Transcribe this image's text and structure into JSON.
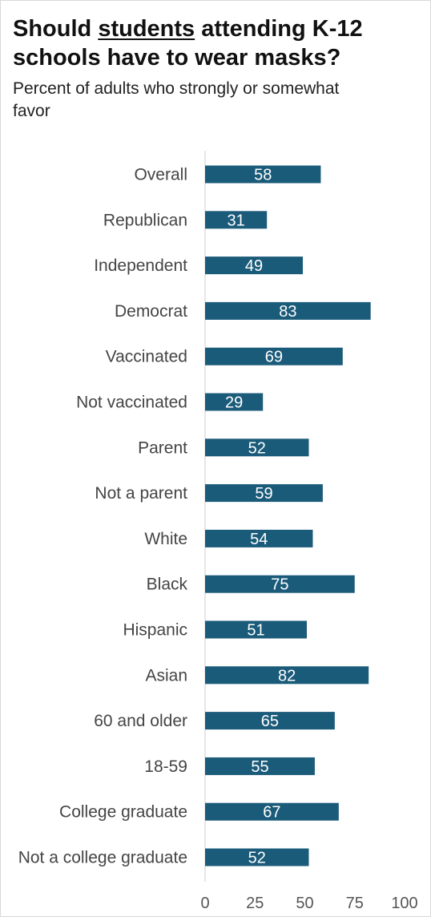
{
  "title": {
    "before": "Should ",
    "emphasis": "students",
    "after": " attending K-12 schools have to wear masks?"
  },
  "subtitle": "Percent of adults who strongly or somewhat favor",
  "colors": {
    "bar": "#1b5b7a",
    "axis": "#cccccc"
  },
  "chart_data": {
    "type": "bar",
    "orientation": "horizontal",
    "categories": [
      "Overall",
      "Republican",
      "Independent",
      "Democrat",
      "Vaccinated",
      "Not vaccinated",
      "Parent",
      "Not a parent",
      "White",
      "Black",
      "Hispanic",
      "Asian",
      "60 and older",
      "18-59",
      "College graduate",
      "Not a college graduate"
    ],
    "values": [
      58,
      31,
      49,
      83,
      69,
      29,
      52,
      59,
      54,
      75,
      51,
      82,
      65,
      55,
      67,
      52
    ],
    "value_labels": [
      "58",
      "31",
      "49",
      "83",
      "69",
      "29",
      "52",
      "59",
      "54",
      "75",
      "51",
      "82",
      "65",
      "55",
      "67",
      "52"
    ],
    "xlim": [
      0,
      100
    ],
    "xticks": [
      0,
      25,
      50,
      75,
      100
    ],
    "xtick_labels": [
      "0",
      "25",
      "50",
      "75",
      "100"
    ],
    "grid": false,
    "legend": "none"
  }
}
